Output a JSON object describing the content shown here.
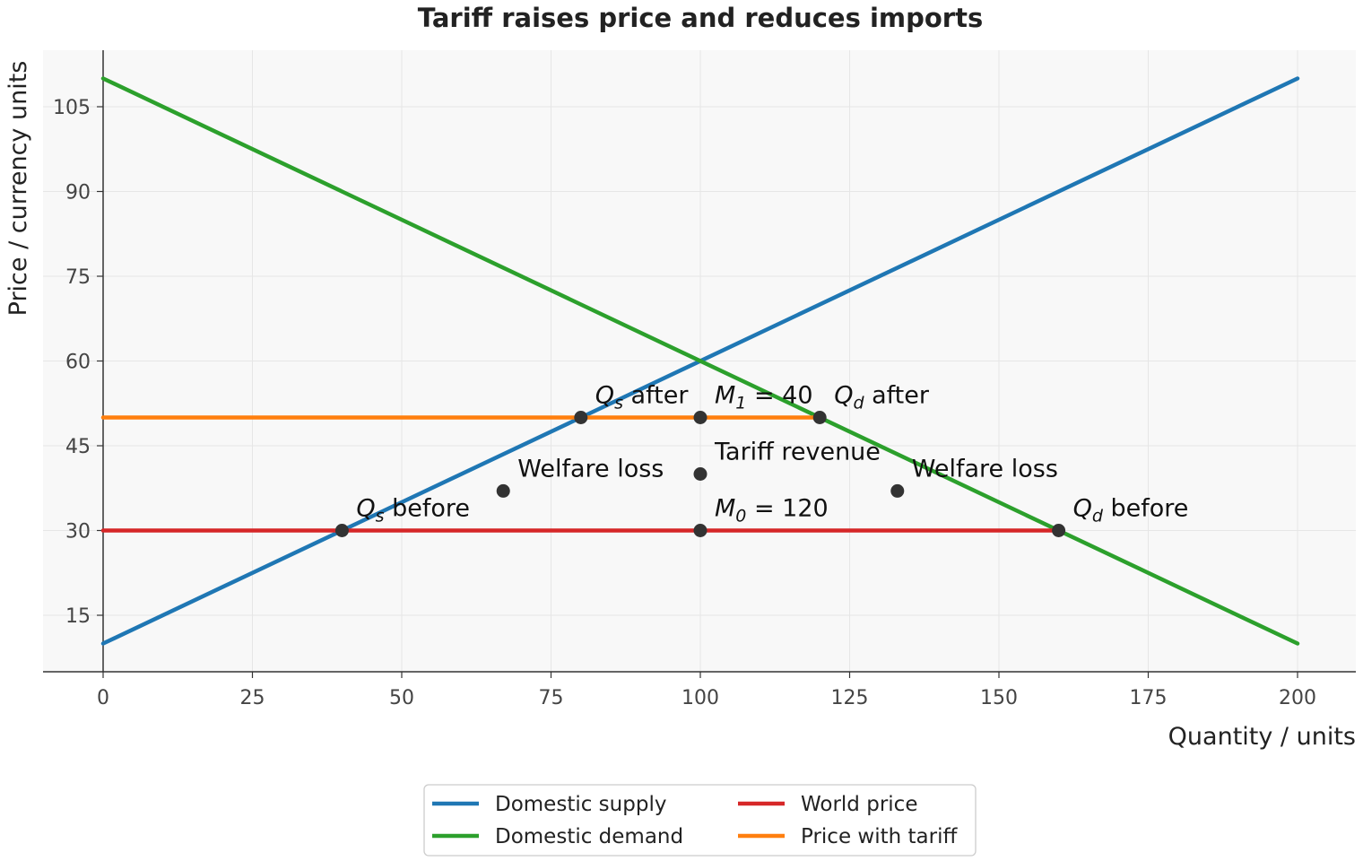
{
  "chart_data": {
    "type": "line",
    "title": "Tariff raises price and reduces imports",
    "xlabel": "Quantity / units",
    "ylabel": "Price / currency units",
    "xlim": [
      -10,
      210
    ],
    "ylim": [
      5,
      115
    ],
    "xticks": [
      0,
      25,
      50,
      75,
      100,
      125,
      150,
      175,
      200
    ],
    "yticks": [
      15,
      30,
      45,
      60,
      75,
      90,
      105
    ],
    "grid": true,
    "legend_position": "bottom-center",
    "series": [
      {
        "name": "Domestic supply",
        "color": "#1f77b4",
        "x": [
          0,
          200
        ],
        "y": [
          10,
          110
        ]
      },
      {
        "name": "Domestic demand",
        "color": "#2ca02c",
        "x": [
          0,
          200
        ],
        "y": [
          110,
          10
        ]
      },
      {
        "name": "World price",
        "color": "#d62728",
        "x": [
          0,
          160
        ],
        "y": [
          30,
          30
        ]
      },
      {
        "name": "Price with tariff",
        "color": "#ff7f0e",
        "x": [
          0,
          120
        ],
        "y": [
          50,
          50
        ]
      }
    ],
    "points": [
      {
        "x": 40,
        "y": 30,
        "label": {
          "sym": "Q",
          "sub": "s",
          "text": " before"
        },
        "dx": 16,
        "dy": -16
      },
      {
        "x": 160,
        "y": 30,
        "label": {
          "sym": "Q",
          "sub": "d",
          "text": " before"
        },
        "dx": 16,
        "dy": -16
      },
      {
        "x": 80,
        "y": 50,
        "label": {
          "sym": "Q",
          "sub": "s",
          "text": " after"
        },
        "dx": 16,
        "dy": -16
      },
      {
        "x": 120,
        "y": 50,
        "label": {
          "sym": "Q",
          "sub": "d",
          "text": " after"
        },
        "dx": 16,
        "dy": -16
      },
      {
        "x": 100,
        "y": 30,
        "label": {
          "sym": "M",
          "sub": "0",
          "text": " = 120"
        },
        "dx": 16,
        "dy": -16
      },
      {
        "x": 100,
        "y": 50,
        "label": {
          "sym": "M",
          "sub": "1",
          "text": " = 40"
        },
        "dx": 16,
        "dy": -16
      },
      {
        "x": 100,
        "y": 40,
        "label": {
          "text": "Tariff revenue"
        },
        "dx": 16,
        "dy": -16
      },
      {
        "x": 67,
        "y": 37,
        "label": {
          "text": "Welfare loss"
        },
        "dx": 16,
        "dy": -16
      },
      {
        "x": 133,
        "y": 37,
        "label": {
          "text": "Welfare loss"
        },
        "dx": 16,
        "dy": -16
      }
    ],
    "point_color": "#333333",
    "background_color": "#f8f8f8",
    "grid_color": "#e6e6e6",
    "axis_color": "#333333"
  }
}
